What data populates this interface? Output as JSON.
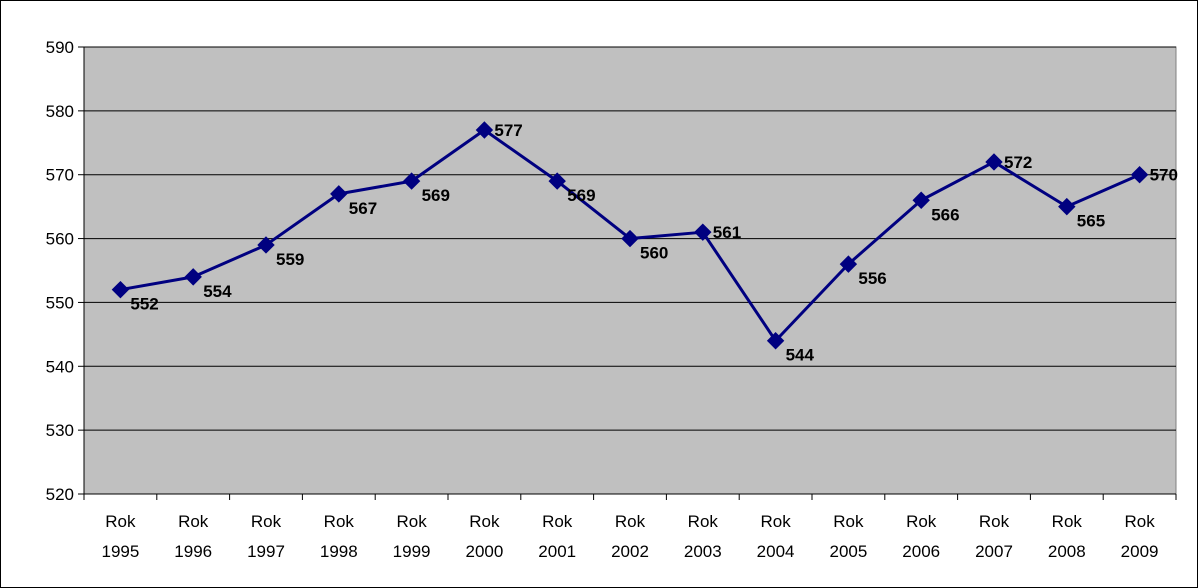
{
  "chart_data": {
    "type": "line",
    "title": "",
    "xlabel": "",
    "ylabel": "",
    "categories": [
      [
        "Rok",
        "1995"
      ],
      [
        "Rok",
        "1996"
      ],
      [
        "Rok",
        "1997"
      ],
      [
        "Rok",
        "1998"
      ],
      [
        "Rok",
        "1999"
      ],
      [
        "Rok",
        "2000"
      ],
      [
        "Rok",
        "2001"
      ],
      [
        "Rok",
        "2002"
      ],
      [
        "Rok",
        "2003"
      ],
      [
        "Rok",
        "2004"
      ],
      [
        "Rok",
        "2005"
      ],
      [
        "Rok",
        "2006"
      ],
      [
        "Rok",
        "2007"
      ],
      [
        "Rok",
        "2008"
      ],
      [
        "Rok",
        "2009"
      ]
    ],
    "series": [
      {
        "values": [
          552,
          554,
          559,
          567,
          569,
          577,
          569,
          560,
          561,
          544,
          556,
          566,
          572,
          565,
          570
        ],
        "color": "#000080"
      }
    ],
    "ylim": [
      520,
      590
    ],
    "yticks": [
      "520",
      "530",
      "540",
      "550",
      "560",
      "570",
      "580",
      "590"
    ],
    "grid": true,
    "legend": "none",
    "plot_background": "#C0C0C0",
    "marker": "diamond"
  }
}
